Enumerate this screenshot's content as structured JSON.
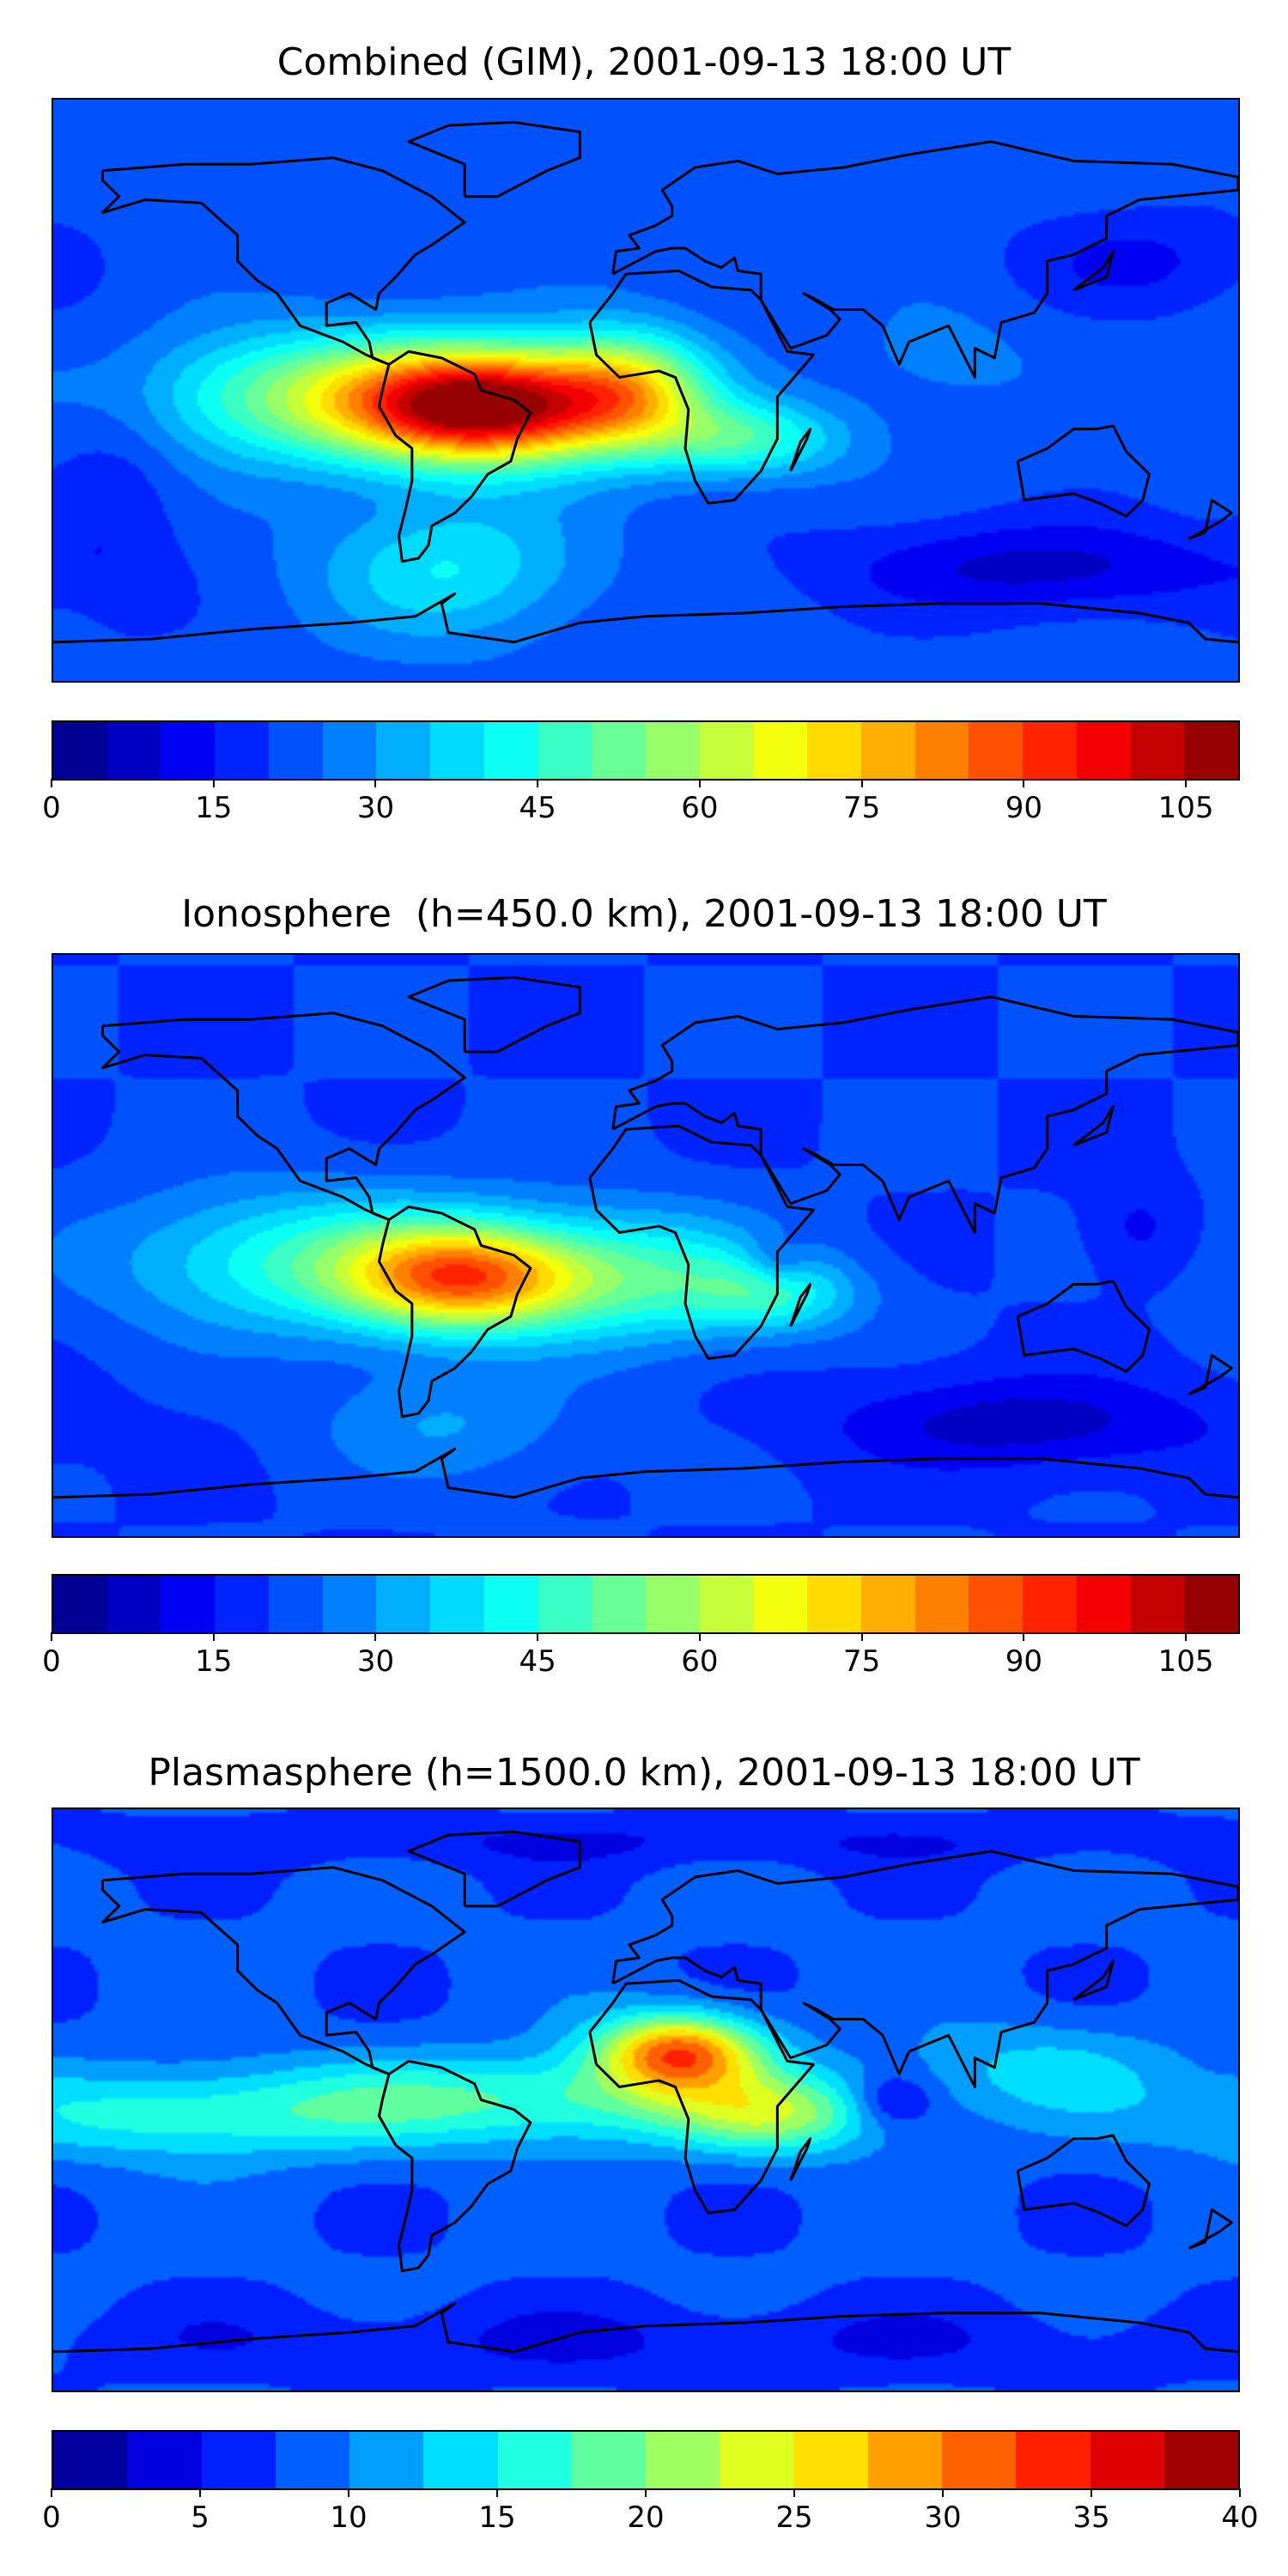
{
  "chart_data": [
    {
      "type": "heatmap",
      "title": "Combined (GIM), 2001-09-13 18:00 UT",
      "projection": "equirectangular global map with coastlines",
      "colormap": "jet",
      "levels": {
        "min": 0,
        "max": 110,
        "step": 5
      },
      "colorbar_ticks": [
        "0",
        "15",
        "30",
        "45",
        "60",
        "75",
        "90",
        "105"
      ],
      "colorbar_tick_values": [
        0,
        15,
        30,
        45,
        60,
        75,
        90,
        105
      ],
      "features": {
        "maximum": 105,
        "maximum_location": "South America / equatorial Atlantic",
        "minimum": 5,
        "minimum_location": "South Indian Ocean / Antarctic coast"
      }
    },
    {
      "type": "heatmap",
      "title": "Ionosphere  (h=450.0 km), 2001-09-13 18:00 UT",
      "projection": "equirectangular global map with coastlines",
      "colormap": "jet",
      "levels": {
        "min": 0,
        "max": 110,
        "step": 5
      },
      "colorbar_ticks": [
        "0",
        "15",
        "30",
        "45",
        "60",
        "75",
        "90",
        "105"
      ],
      "colorbar_tick_values": [
        0,
        15,
        30,
        45,
        60,
        75,
        90,
        105
      ],
      "features": {
        "maximum": 85,
        "maximum_location": "South America",
        "minimum": 5,
        "minimum_location": "Southern ocean"
      }
    },
    {
      "type": "heatmap",
      "title": "Plasmasphere (h=1500.0 km), 2001-09-13 18:00 UT",
      "projection": "equirectangular global map with coastlines",
      "colormap": "jet",
      "levels": {
        "min": 0,
        "max": 40,
        "step": 2.5
      },
      "colorbar_ticks": [
        "0",
        "5",
        "10",
        "15",
        "20",
        "25",
        "30",
        "35",
        "40"
      ],
      "colorbar_tick_values": [
        0,
        5,
        10,
        15,
        20,
        25,
        30,
        35,
        40
      ],
      "features": {
        "maximum": 32.5,
        "maximum_location": "North-west Africa",
        "minimum": 2.5,
        "minimum_location": "Polar regions"
      }
    }
  ]
}
